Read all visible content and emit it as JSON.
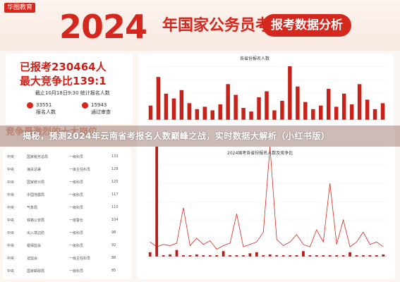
{
  "banner": {
    "logo": "华图教育",
    "year": "2024",
    "title": "年国家公务员考试",
    "button": "报考数据分析"
  },
  "stats": {
    "applicants": "已报考230464人",
    "ratio": "最大竞争比139:1",
    "date": "截止10月18日9:30  统计报名人数",
    "blocks": [
      {
        "value": "33551",
        "label": "报名人数"
      },
      {
        "value": "15943",
        "label": "通过审查"
      }
    ]
  },
  "overlay": {
    "faded_heading": "竞争最激烈的十大岗位",
    "title": "揭秘，预测2024年云南省考报名人数巅峰之战，实时数据大解析（小红书版）"
  },
  "charts": {
    "top_caption": "各省份报名人数",
    "bottom_caption": "2024国考各省份报名人数及竞争比"
  },
  "chart_data": [
    {
      "type": "bar",
      "title": "各省份报名人数",
      "values": [
        12000,
        36000,
        22000,
        18000,
        25000,
        14000,
        9000,
        11000,
        8000,
        13000,
        30000,
        21000,
        10000,
        7000,
        19000,
        24000,
        8000,
        16000,
        45000,
        28000,
        15000,
        9000,
        12000,
        26000,
        11000,
        22000,
        13000,
        30000,
        17000,
        9000,
        14000
      ]
    },
    {
      "type": "bar",
      "title": "2024国考各省份报名人数及竞争比",
      "values": [
        4,
        100,
        1,
        2,
        6,
        1,
        1,
        2,
        1,
        1,
        1,
        5,
        1,
        1,
        1,
        3,
        4,
        1,
        2,
        1,
        1,
        1,
        1,
        5,
        1,
        1,
        1,
        1,
        1,
        1,
        4,
        1,
        1,
        1,
        1,
        2
      ],
      "ratios": [
        12,
        8,
        10,
        9,
        11,
        40,
        9,
        15,
        10,
        13,
        6,
        9,
        11,
        35,
        8,
        10,
        12,
        20,
        90,
        14,
        9,
        12,
        18,
        10,
        8,
        22,
        12,
        60,
        10,
        30,
        8,
        12,
        20,
        10,
        12,
        8
      ]
    }
  ],
  "table": {
    "rows": [
      [
        "中央",
        "国家税务总局",
        "一级科员",
        "133"
      ],
      [
        "中央",
        "海关总署",
        "一级主任科员",
        "128"
      ],
      [
        "中央",
        "国家统计局",
        "一级科员",
        "120"
      ],
      [
        "中央",
        "中国地震局",
        "一级科员",
        "117"
      ],
      [
        "中央",
        "气象局",
        "一级科员",
        "110"
      ],
      [
        "中央",
        "铁路公安局",
        "一级警长",
        "104"
      ],
      [
        "中央",
        "出入境边防",
        "一级科员",
        "98"
      ],
      [
        "中央",
        "银保监会",
        "一级科员",
        "92"
      ],
      [
        "中央",
        "证监会",
        "一级主任科员",
        "88"
      ],
      [
        "中央",
        "国家邮政局",
        "一级科员",
        "85"
      ]
    ]
  }
}
